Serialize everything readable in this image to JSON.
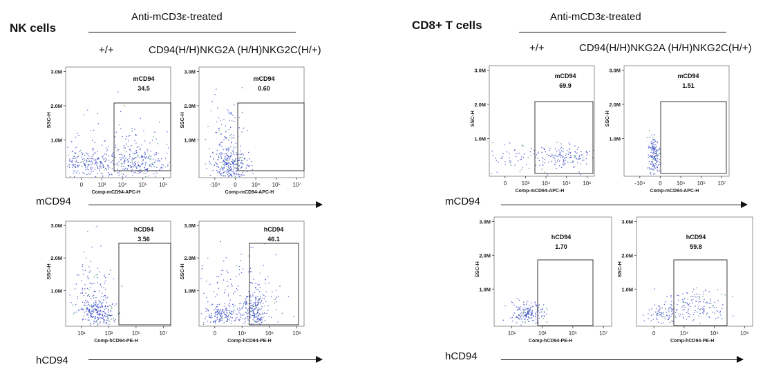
{
  "figure": {
    "left": {
      "title": "NK cells",
      "treatment": "Anti-mCD3ε-treated",
      "genotype_wt": "+/+",
      "genotype_ko": "CD94(H/H)NKG2A (H/H)NKG2C(H/+)",
      "row1_label": "mCD94",
      "row2_label": "hCD94"
    },
    "right": {
      "title": "CD8+ T cells",
      "treatment": "Anti-mCD3ε-treated",
      "genotype_wt": "+/+",
      "genotype_ko": "CD94(H/H)NKG2A (H/H)NKG2C(H/+)",
      "row1_label": "mCD94",
      "row2_label": "hCD94"
    }
  },
  "chart_data": [
    {
      "type": "scatter",
      "panel": "NK +/+ mCD94",
      "gate_name": "mCD94",
      "gate_value": "34.5",
      "xlabel": "Comp-mCD94-APC-H",
      "ylabel": "SSC-H",
      "xticks": [
        "0",
        "10³",
        "10⁴",
        "10⁵",
        "10⁶"
      ],
      "yticks": [
        "1.0M",
        "2.0M",
        "3.0M"
      ],
      "cloud": "broad"
    },
    {
      "type": "scatter",
      "panel": "NK KO mCD94",
      "gate_name": "mCD94",
      "gate_value": "0.60",
      "xlabel": "Comp-mCD94-APC-H",
      "ylabel": "SSC-H",
      "xticks": [
        "-10⁴",
        "0",
        "10⁴",
        "10⁵",
        "10⁷"
      ],
      "yticks": [
        "1.0M",
        "2.0M",
        "3.0M"
      ],
      "cloud": "left"
    },
    {
      "type": "scatter",
      "panel": "NK +/+ hCD94",
      "gate_name": "hCD94",
      "gate_value": "3.56",
      "xlabel": "Comp-hCD94-PE-H",
      "ylabel": "SSC-H",
      "xticks": [
        "10¹",
        "10³",
        "10⁵",
        "10⁷"
      ],
      "yticks": [
        "1.0M",
        "2.0M",
        "3.0M"
      ],
      "cloud": "left"
    },
    {
      "type": "scatter",
      "panel": "NK KO hCD94",
      "gate_name": "hCD94",
      "gate_value": "46.1",
      "xlabel": "Comp-hCD94-PE-H",
      "ylabel": "SSC-H",
      "xticks": [
        "0",
        "10⁴",
        "10⁶",
        "10⁸"
      ],
      "yticks": [
        "1.0M",
        "2.0M",
        "3.0M"
      ],
      "cloud": "two"
    },
    {
      "type": "scatter",
      "panel": "CD8 +/+ mCD94",
      "gate_name": "mCD94",
      "gate_value": "69.9",
      "xlabel": "Comp-mCD94-APC-H",
      "ylabel": "SSC-H",
      "xticks": [
        "0",
        "10³",
        "10⁴",
        "10⁵",
        "10⁶"
      ],
      "yticks": [
        "1.0M",
        "2.0M",
        "3.0M"
      ],
      "cloud": "sparse"
    },
    {
      "type": "scatter",
      "panel": "CD8 KO mCD94",
      "gate_name": "mCD94",
      "gate_value": "1.51",
      "xlabel": "Comp-mCD94-APC-H",
      "ylabel": "SSC-H",
      "xticks": [
        "-10⁴",
        "0",
        "10⁴",
        "10⁵",
        "10⁷"
      ],
      "yticks": [
        "1.0M",
        "2.0M",
        "3.0M"
      ],
      "cloud": "narrow"
    },
    {
      "type": "scatter",
      "panel": "CD8 +/+ hCD94",
      "gate_name": "hCD94",
      "gate_value": "1.70",
      "xlabel": "Comp-hCD94-PE-H",
      "ylabel": "SSC-H",
      "xticks": [
        "10¹",
        "10³",
        "10⁵",
        "10⁷"
      ],
      "yticks": [
        "1.0M",
        "2.0M",
        "3.0M"
      ],
      "cloud": "blob"
    },
    {
      "type": "scatter",
      "panel": "CD8 KO hCD94",
      "gate_name": "hCD94",
      "gate_value": "59.8",
      "xlabel": "Comp-hCD94-PE-H",
      "ylabel": "SSC-H",
      "xticks": [
        "0",
        "10⁴",
        "10⁶",
        "10⁸"
      ],
      "yticks": [
        "1.0M",
        "2.0M",
        "3.0M"
      ],
      "cloud": "spread"
    }
  ]
}
